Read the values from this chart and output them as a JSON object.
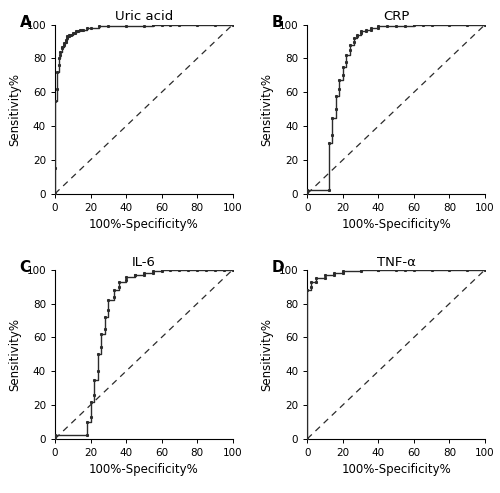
{
  "panels": [
    {
      "label": "A",
      "title": "Uric acid",
      "roc_fpr": [
        0,
        0,
        0,
        0.01,
        0.01,
        0.02,
        0.02,
        0.03,
        0.03,
        0.04,
        0.04,
        0.05,
        0.05,
        0.06,
        0.06,
        0.07,
        0.07,
        0.08,
        0.08,
        0.09,
        0.1,
        0.11,
        0.12,
        0.13,
        0.14,
        0.15,
        0.16,
        0.18,
        0.2,
        0.25,
        0.3,
        0.4,
        0.5,
        0.55,
        0.6,
        0.65,
        0.7,
        0.8,
        0.9,
        1.0
      ],
      "roc_tpr": [
        0,
        0.15,
        0.55,
        0.62,
        0.72,
        0.76,
        0.8,
        0.82,
        0.84,
        0.86,
        0.87,
        0.88,
        0.89,
        0.9,
        0.91,
        0.92,
        0.93,
        0.93,
        0.94,
        0.94,
        0.95,
        0.95,
        0.96,
        0.96,
        0.97,
        0.97,
        0.97,
        0.98,
        0.98,
        0.99,
        0.99,
        0.99,
        0.99,
        1.0,
        1.0,
        1.0,
        1.0,
        1.0,
        1.0,
        1.0
      ]
    },
    {
      "label": "B",
      "title": "CRP",
      "roc_fpr": [
        0,
        0,
        0.12,
        0.12,
        0.14,
        0.14,
        0.16,
        0.16,
        0.18,
        0.18,
        0.2,
        0.2,
        0.22,
        0.22,
        0.24,
        0.24,
        0.26,
        0.26,
        0.28,
        0.28,
        0.3,
        0.3,
        0.33,
        0.33,
        0.36,
        0.36,
        0.4,
        0.4,
        0.45,
        0.5,
        0.55,
        0.6,
        0.65,
        0.7,
        0.8,
        0.9,
        1.0
      ],
      "roc_tpr": [
        0,
        0.02,
        0.02,
        0.3,
        0.35,
        0.45,
        0.5,
        0.58,
        0.62,
        0.67,
        0.7,
        0.75,
        0.78,
        0.82,
        0.85,
        0.88,
        0.9,
        0.92,
        0.93,
        0.94,
        0.95,
        0.96,
        0.96,
        0.97,
        0.97,
        0.98,
        0.98,
        0.99,
        0.99,
        0.99,
        0.99,
        1.0,
        1.0,
        1.0,
        1.0,
        1.0,
        1.0
      ]
    },
    {
      "label": "C",
      "title": "IL-6",
      "roc_fpr": [
        0,
        0,
        0.18,
        0.18,
        0.2,
        0.2,
        0.22,
        0.22,
        0.24,
        0.24,
        0.26,
        0.26,
        0.28,
        0.28,
        0.3,
        0.3,
        0.33,
        0.33,
        0.36,
        0.36,
        0.4,
        0.4,
        0.45,
        0.45,
        0.5,
        0.5,
        0.55,
        0.55,
        0.6,
        0.6,
        0.65,
        0.7,
        0.75,
        0.8,
        0.85,
        0.9,
        0.95,
        1.0
      ],
      "roc_tpr": [
        0,
        0.02,
        0.02,
        0.1,
        0.13,
        0.22,
        0.26,
        0.35,
        0.4,
        0.5,
        0.54,
        0.62,
        0.65,
        0.72,
        0.76,
        0.82,
        0.84,
        0.88,
        0.9,
        0.93,
        0.94,
        0.96,
        0.97,
        0.97,
        0.97,
        0.98,
        0.98,
        0.99,
        0.99,
        1.0,
        1.0,
        1.0,
        1.0,
        1.0,
        1.0,
        1.0,
        1.0,
        1.0
      ]
    },
    {
      "label": "D",
      "title": "TNF-α",
      "roc_fpr": [
        0,
        0,
        0.02,
        0.02,
        0.05,
        0.05,
        0.1,
        0.1,
        0.15,
        0.15,
        0.2,
        0.2,
        0.3,
        0.3,
        0.4,
        0.4,
        0.5,
        0.55,
        0.6,
        0.7,
        0.8,
        0.9,
        1.0
      ],
      "roc_tpr": [
        0,
        0.88,
        0.9,
        0.93,
        0.93,
        0.95,
        0.95,
        0.97,
        0.97,
        0.98,
        0.98,
        0.99,
        0.99,
        1.0,
        1.0,
        1.0,
        1.0,
        1.0,
        1.0,
        1.0,
        1.0,
        1.0,
        1.0
      ]
    }
  ],
  "xlabel": "100%-Specificity%",
  "ylabel": "Sensitivity%",
  "line_color": "#2b2b2b",
  "diag_color": "#2b2b2b",
  "background_color": "#ffffff",
  "tick_fontsize": 7.5,
  "label_fontsize": 8.5,
  "title_fontsize": 9.5,
  "panel_label_fontsize": 11,
  "xticks": [
    0,
    20,
    40,
    60,
    80,
    100
  ],
  "yticks": [
    0,
    20,
    40,
    60,
    80,
    100
  ]
}
